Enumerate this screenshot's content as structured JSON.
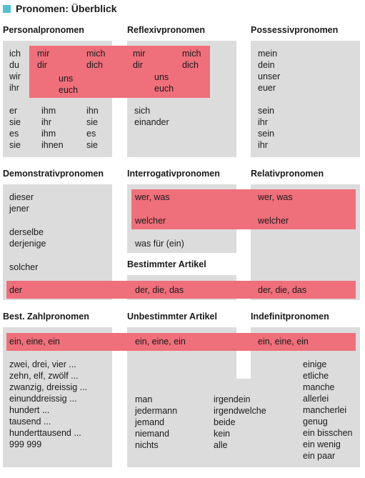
{
  "title": "Pronomen: Überblick",
  "colors": {
    "accent": "#4fc1d1",
    "panel": "#dcdcdd",
    "highlight": "#ef6f7a"
  },
  "headers": {
    "personal": "Personalpronomen",
    "reflexiv": "Reflexivpronomen",
    "possessiv": "Possessivpronomen",
    "demonstrativ": "Demonstrativpronomen",
    "interrogativ": "Interrogativpronomen",
    "relativ": "Relativpronomen",
    "bestimmter": "Bestimmter Artikel",
    "zahl": "Best. Zahlpronomen",
    "unbestimmter": "Unbestimmter Artikel",
    "indefinit": "Indefinitpronomen"
  },
  "personal": {
    "nom1": [
      "ich",
      "du",
      "wir",
      "ihr"
    ],
    "dat1": [
      "mir",
      "dir"
    ],
    "dat1pl": [
      "uns",
      "euch"
    ],
    "akk1": [
      "mich",
      "dich"
    ],
    "nom3": [
      "er",
      "sie",
      "es",
      "sie"
    ],
    "dat3": [
      "ihm",
      "ihr",
      "ihm",
      "ihnen"
    ],
    "akk3": [
      "ihn",
      "sie",
      "es",
      "sie"
    ]
  },
  "reflexiv": {
    "dat": [
      "mir",
      "dir"
    ],
    "akk": [
      "mich",
      "dich"
    ],
    "pl": [
      "uns",
      "euch"
    ],
    "other": [
      "sich",
      "einander"
    ]
  },
  "possessiv": {
    "first": [
      "mein",
      "dein",
      "unser",
      "euer"
    ],
    "third": [
      "sein",
      "ihr",
      "sein",
      "ihr"
    ]
  },
  "demonstrativ": {
    "a": [
      "dieser",
      "jener"
    ],
    "b": [
      "derselbe",
      "derjenige"
    ],
    "c": "solcher",
    "article": "der"
  },
  "interrogativ": {
    "a": "wer, was",
    "b": "welcher",
    "c": "was für (ein)"
  },
  "relativ": {
    "a": "wer, was",
    "b": "welcher"
  },
  "bestimmter": {
    "interrogativ_col": "der, die, das",
    "relativ_col": "der, die, das"
  },
  "unbestimmter": {
    "col1": "ein, eine, ein",
    "col2": "ein, eine, ein",
    "col3": "ein, eine, ein"
  },
  "zahl": [
    "zwei, drei, vier ...",
    "zehn, elf, zwölf ...",
    "zwanzig, dreissig ...",
    "einunddreissig ...",
    "hundert ...",
    "tausend ...",
    "hunderttausend ...",
    "999 999"
  ],
  "indefinit": {
    "col1": [
      "man",
      "jedermann",
      "jemand",
      "niemand",
      "nichts"
    ],
    "col2": [
      "irgendein",
      "irgendwelche",
      "beide",
      "kein",
      "alle"
    ],
    "col3": [
      "einige",
      "etliche",
      "manche",
      "allerlei",
      "mancherlei",
      "genug",
      "ein bisschen",
      "ein wenig",
      "ein paar"
    ]
  }
}
